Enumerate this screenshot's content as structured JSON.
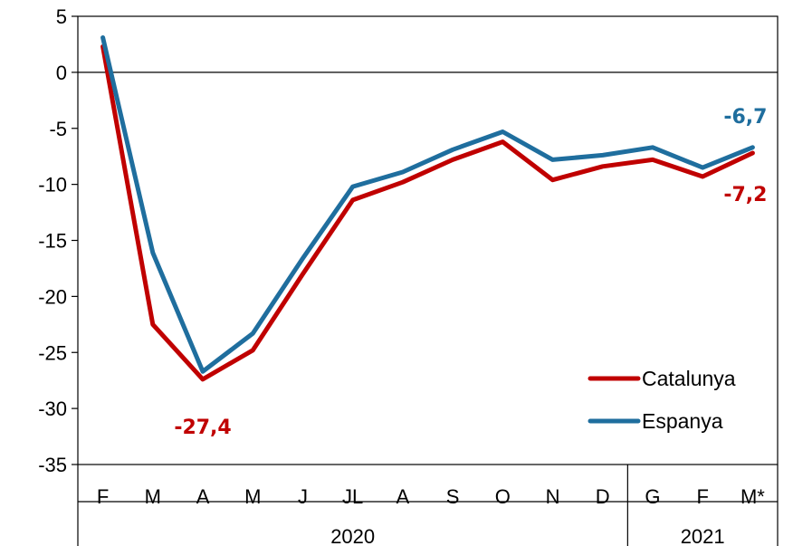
{
  "chart_data": {
    "type": "line",
    "categories": [
      "F",
      "M",
      "A",
      "M",
      "J",
      "JL",
      "A",
      "S",
      "O",
      "N",
      "D",
      "G",
      "F",
      "M*"
    ],
    "year_groups": [
      {
        "label": "2020",
        "start": 0,
        "end": 10
      },
      {
        "label": "2021",
        "start": 11,
        "end": 13
      }
    ],
    "ylim": [
      -35,
      5
    ],
    "yticks": [
      5,
      0,
      -5,
      -10,
      -15,
      -20,
      -25,
      -30,
      -35
    ],
    "title": "",
    "xlabel": "",
    "ylabel": "",
    "legend_position": "bottom-right",
    "series": [
      {
        "name": "Catalunya",
        "color": "#C00000",
        "values": [
          2.3,
          -22.5,
          -27.4,
          -24.8,
          -18.0,
          -11.4,
          -9.8,
          -7.8,
          -6.2,
          -9.6,
          -8.4,
          -7.8,
          -9.3,
          -7.2
        ]
      },
      {
        "name": "Espanya",
        "color": "#1F6E9E",
        "values": [
          3.1,
          -16.1,
          -26.7,
          -23.3,
          -16.6,
          -10.2,
          -8.9,
          -6.9,
          -5.3,
          -7.8,
          -7.4,
          -6.7,
          -8.5,
          -6.7
        ]
      }
    ],
    "annotations": [
      {
        "text": "-27,4",
        "series": 0,
        "index": 2,
        "color": "#C00000"
      },
      {
        "text": "-6,7",
        "series": 1,
        "index": 13,
        "color": "#1F6E9E"
      },
      {
        "text": "-7,2",
        "series": 0,
        "index": 13,
        "color": "#C00000"
      }
    ]
  }
}
